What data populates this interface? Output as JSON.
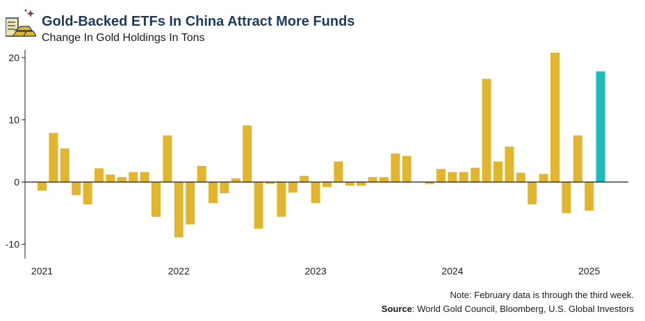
{
  "header": {
    "title": "Gold-Backed ETFs In China Attract More Funds",
    "subtitle": "Change In Gold Holdings In Tons"
  },
  "footer": {
    "note": "Note: February data is through the third week.",
    "source_label": "Source",
    "source_text": ": World Gold Council, Bloomberg, U.S. Global Investors"
  },
  "colors": {
    "bar": "#e2b52e",
    "highlight": "#1bbcc0",
    "title": "#1b3a5c",
    "axis": "#1a1a1a"
  },
  "icons": {
    "logo": "gold-bars-icon"
  },
  "chart_data": {
    "type": "bar",
    "title": "Gold-Backed ETFs In China Attract More Funds",
    "subtitle": "Change In Gold Holdings In Tons",
    "ylim": [
      -12,
      21
    ],
    "yticks": [
      -10,
      0,
      10,
      20
    ],
    "x_tick_labels": [
      "2021",
      "2022",
      "2023",
      "2024",
      "2025"
    ],
    "start_month": "2021-01",
    "highlight_last": true,
    "values": [
      -1.4,
      7.9,
      5.4,
      -2.1,
      -3.6,
      2.2,
      1.2,
      0.8,
      1.6,
      1.6,
      -5.6,
      7.5,
      -8.9,
      -6.8,
      2.6,
      -3.4,
      -1.8,
      0.6,
      9.1,
      -7.5,
      -0.3,
      -5.6,
      -1.7,
      1.0,
      -3.4,
      -0.8,
      3.3,
      -0.6,
      -0.6,
      0.8,
      0.8,
      4.6,
      4.2,
      0.0,
      -0.3,
      2.1,
      1.6,
      1.6,
      2.3,
      16.6,
      3.3,
      5.7,
      1.5,
      -3.6,
      1.3,
      20.8,
      -5.0,
      7.5,
      -4.6,
      17.8
    ]
  }
}
